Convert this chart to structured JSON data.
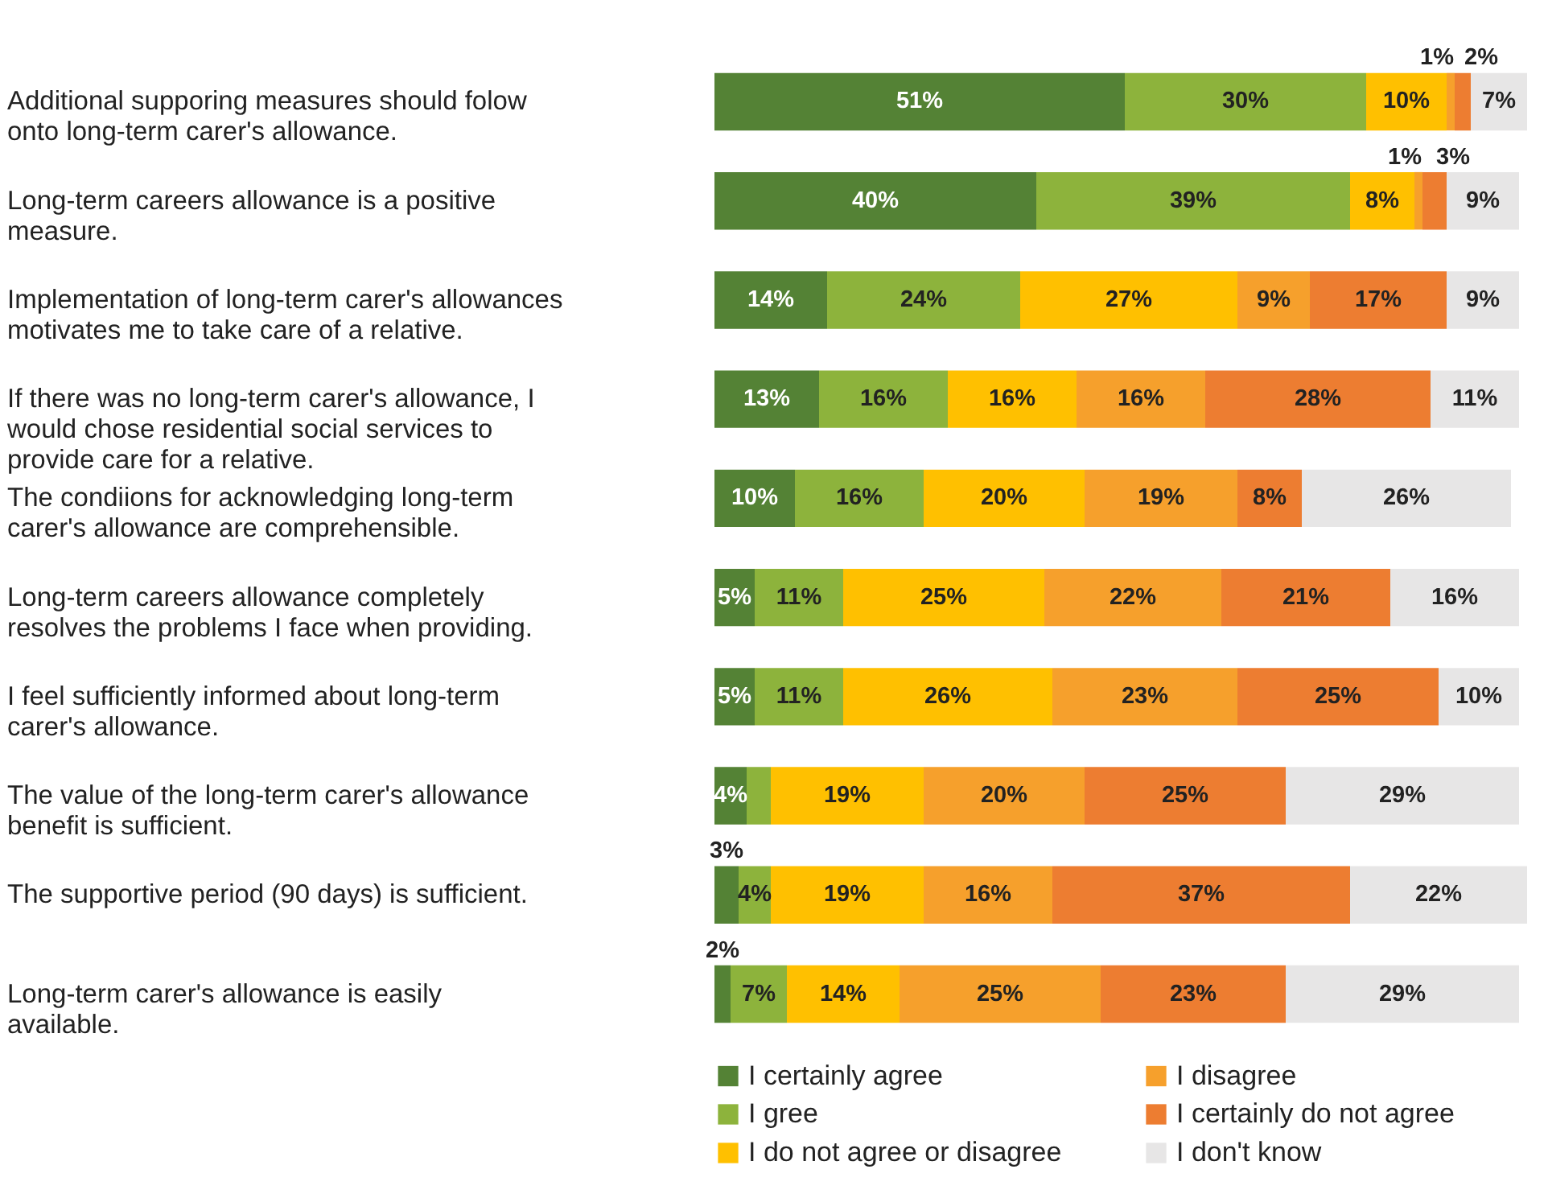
{
  "chart_data": {
    "type": "bar",
    "orientation": "horizontal",
    "stacked": true,
    "legend": "bottom",
    "categories": [
      "Additional supporing measures should folow onto long-term carer's allowance.",
      "Long-term careers allowance is a positive measure.",
      "Implementation of long-term carer's allowances motivates me to take care of a relative.",
      "If there was no long-term carer's allowance, I would chose residential social services to provide care for a relative.",
      "The condiions for acknowledging long-term carer's allowance are comprehensible.",
      "Long-term careers allowance completely resolves the problems I face when providing.",
      "I feel sufficiently informed about long-term carer's allowance.",
      "The value of the long-term carer's allowance benefit is sufficient.",
      "The supportive period (90 days) is sufficient.",
      "Long-term carer's allowance is easily available."
    ],
    "series": [
      {
        "name": "I certainly agree",
        "color": "#548235",
        "values": [
          51,
          40,
          14,
          13,
          10,
          5,
          5,
          4,
          3,
          2
        ],
        "value_labels": [
          "51%",
          "40%",
          "14%",
          "13%",
          "10%",
          "5%",
          "5%",
          "4%",
          "3%",
          "2%"
        ]
      },
      {
        "name": "I gree",
        "color": "#8db33c",
        "values": [
          30,
          39,
          24,
          16,
          16,
          11,
          11,
          3,
          4,
          7
        ],
        "value_labels": [
          "30%",
          "39%",
          "24%",
          "16%",
          "16%",
          "11%",
          "11%",
          null,
          "4%",
          "7%"
        ]
      },
      {
        "name": "I do not agree or disagree",
        "color": "#ffc000",
        "values": [
          10,
          8,
          27,
          16,
          20,
          25,
          26,
          19,
          19,
          14
        ],
        "value_labels": [
          "10%",
          "8%",
          "27%",
          "16%",
          "20%",
          "25%",
          "26%",
          "19%",
          "19%",
          "14%"
        ]
      },
      {
        "name": "I disagree",
        "color": "#f6a02c",
        "values": [
          1,
          1,
          9,
          16,
          19,
          22,
          23,
          20,
          16,
          25
        ],
        "value_labels": [
          "1%",
          "1%",
          "9%",
          "16%",
          "19%",
          "22%",
          "23%",
          "20%",
          "16%",
          "25%"
        ]
      },
      {
        "name": "I certainly do not agree",
        "color": "#ed7d31",
        "values": [
          2,
          3,
          17,
          28,
          8,
          21,
          25,
          25,
          37,
          23
        ],
        "value_labels": [
          "2%",
          "3%",
          "17%",
          "28%",
          "8%",
          "21%",
          "25%",
          "25%",
          "37%",
          "23%"
        ]
      },
      {
        "name": "I don't know",
        "color": "#e7e6e6",
        "values": [
          7,
          9,
          9,
          11,
          26,
          16,
          10,
          29,
          22,
          29
        ],
        "value_labels": [
          "7%",
          "9%",
          "9%",
          "11%",
          "26%",
          "16%",
          "10%",
          "29%",
          "22%",
          "29%"
        ]
      }
    ]
  }
}
